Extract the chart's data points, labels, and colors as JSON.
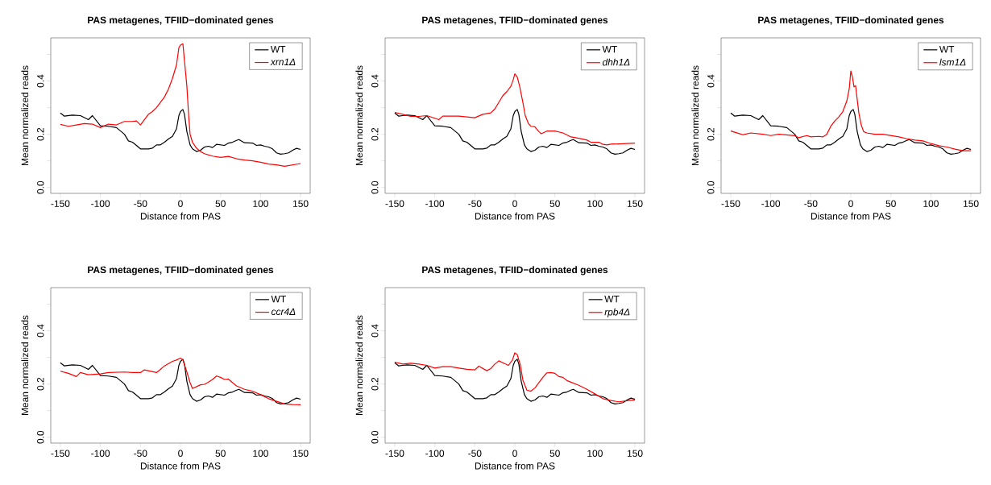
{
  "chart_data": [
    {
      "type": "line",
      "title": "PAS metagenes, TFIID−dominated genes",
      "xlabel": "Distance from PAS",
      "ylabel": "Mean normalized reads",
      "legend": "top right",
      "xlim": [
        -162,
        162
      ],
      "ylim": [
        -0.022,
        0.562
      ],
      "xticks": [
        -150,
        -100,
        -50,
        0,
        50,
        100,
        150
      ],
      "yticks": [
        {
          "value": 0,
          "label": "0.0"
        },
        {
          "value": 0.1,
          "label": null
        },
        {
          "value": 0.2,
          "label": "0.2"
        },
        {
          "value": 0.3,
          "label": null
        },
        {
          "value": 0.4,
          "label": "0.4"
        },
        {
          "value": 0.5,
          "label": null
        }
      ],
      "series": [
        {
          "name": "WT",
          "color": "#000000",
          "x": [
            -150,
            -145,
            -140,
            -135,
            -125,
            -115,
            -110,
            -100,
            -90,
            -80,
            -70,
            -65,
            -60,
            -55,
            -50,
            -40,
            -35,
            -30,
            -25,
            -20,
            -15,
            -10,
            -5,
            -2,
            0,
            3,
            5,
            8,
            12,
            15,
            20,
            25,
            30,
            35,
            40,
            45,
            50,
            55,
            60,
            65,
            70,
            73,
            80,
            90,
            95,
            100,
            105,
            110,
            115,
            120,
            125,
            130,
            135,
            140,
            145,
            150
          ],
          "values": [
            0.28,
            0.268,
            0.27,
            0.272,
            0.27,
            0.255,
            0.27,
            0.232,
            0.23,
            0.225,
            0.2,
            0.175,
            0.17,
            0.158,
            0.145,
            0.145,
            0.148,
            0.16,
            0.16,
            0.17,
            0.182,
            0.192,
            0.22,
            0.27,
            0.285,
            0.293,
            0.275,
            0.21,
            0.16,
            0.145,
            0.135,
            0.14,
            0.152,
            0.155,
            0.15,
            0.162,
            0.16,
            0.158,
            0.167,
            0.17,
            0.177,
            0.18,
            0.168,
            0.167,
            0.158,
            0.16,
            0.155,
            0.152,
            0.145,
            0.13,
            0.125,
            0.127,
            0.13,
            0.14,
            0.147,
            0.143
          ]
        },
        {
          "name": "xrn1Δ",
          "color": "#ff0000",
          "x": [
            -150,
            -140,
            -130,
            -120,
            -110,
            -100,
            -90,
            -80,
            -70,
            -60,
            -55,
            -50,
            -45,
            -40,
            -35,
            -30,
            -20,
            -15,
            -10,
            -5,
            -2,
            0,
            3,
            8,
            10,
            12,
            15,
            20,
            25,
            30,
            40,
            50,
            60,
            70,
            80,
            90,
            100,
            110,
            120,
            130,
            140,
            150
          ],
          "values": [
            0.237,
            0.23,
            0.235,
            0.24,
            0.238,
            0.225,
            0.238,
            0.235,
            0.248,
            0.248,
            0.25,
            0.235,
            0.255,
            0.275,
            0.285,
            0.3,
            0.34,
            0.37,
            0.41,
            0.46,
            0.525,
            0.535,
            0.54,
            0.38,
            0.28,
            0.2,
            0.17,
            0.148,
            0.135,
            0.127,
            0.118,
            0.113,
            0.117,
            0.108,
            0.103,
            0.1,
            0.095,
            0.088,
            0.085,
            0.08,
            0.085,
            0.09
          ]
        }
      ]
    },
    {
      "type": "line",
      "title": "PAS metagenes, TFIID−dominated genes",
      "xlabel": "Distance from PAS",
      "ylabel": "Mean normalized reads",
      "legend": "top right",
      "xlim": [
        -162,
        162
      ],
      "ylim": [
        -0.022,
        0.562
      ],
      "xticks": [
        -150,
        -100,
        -50,
        0,
        50,
        100,
        150
      ],
      "yticks": [
        {
          "value": 0,
          "label": "0.0"
        },
        {
          "value": 0.1,
          "label": null
        },
        {
          "value": 0.2,
          "label": "0.2"
        },
        {
          "value": 0.3,
          "label": null
        },
        {
          "value": 0.4,
          "label": "0.4"
        },
        {
          "value": 0.5,
          "label": null
        }
      ],
      "series": [
        {
          "name": "WT",
          "color": "#000000",
          "x": [
            -150,
            -145,
            -140,
            -135,
            -125,
            -115,
            -110,
            -100,
            -90,
            -80,
            -70,
            -65,
            -60,
            -55,
            -50,
            -40,
            -35,
            -30,
            -25,
            -20,
            -15,
            -10,
            -5,
            -2,
            0,
            3,
            5,
            8,
            12,
            15,
            20,
            25,
            30,
            35,
            40,
            45,
            50,
            55,
            60,
            65,
            70,
            73,
            80,
            90,
            95,
            100,
            105,
            110,
            115,
            120,
            125,
            130,
            135,
            140,
            145,
            150
          ],
          "values": [
            0.28,
            0.268,
            0.27,
            0.272,
            0.27,
            0.255,
            0.27,
            0.232,
            0.23,
            0.225,
            0.2,
            0.175,
            0.17,
            0.158,
            0.145,
            0.145,
            0.148,
            0.16,
            0.16,
            0.17,
            0.182,
            0.192,
            0.22,
            0.27,
            0.285,
            0.293,
            0.275,
            0.21,
            0.16,
            0.145,
            0.135,
            0.14,
            0.152,
            0.155,
            0.15,
            0.162,
            0.16,
            0.158,
            0.167,
            0.17,
            0.177,
            0.18,
            0.168,
            0.167,
            0.158,
            0.16,
            0.155,
            0.152,
            0.145,
            0.13,
            0.125,
            0.127,
            0.13,
            0.14,
            0.147,
            0.143
          ]
        },
        {
          "name": "dhh1Δ",
          "color": "#ff0000",
          "x": [
            -150,
            -140,
            -130,
            -120,
            -110,
            -100,
            -95,
            -90,
            -70,
            -60,
            -50,
            -40,
            -30,
            -25,
            -20,
            -15,
            -10,
            -5,
            -2,
            0,
            3,
            6,
            10,
            13,
            17,
            20,
            25,
            30,
            33,
            40,
            50,
            60,
            70,
            80,
            90,
            95,
            105,
            110,
            115,
            120,
            130,
            150
          ],
          "values": [
            0.282,
            0.275,
            0.267,
            0.267,
            0.27,
            0.26,
            0.255,
            0.268,
            0.268,
            0.265,
            0.262,
            0.275,
            0.28,
            0.295,
            0.32,
            0.345,
            0.36,
            0.38,
            0.405,
            0.427,
            0.415,
            0.38,
            0.32,
            0.27,
            0.24,
            0.23,
            0.228,
            0.21,
            0.202,
            0.212,
            0.212,
            0.205,
            0.19,
            0.185,
            0.178,
            0.17,
            0.17,
            0.162,
            0.16,
            0.163,
            0.164,
            0.167
          ]
        }
      ]
    },
    {
      "type": "line",
      "title": "PAS metagenes, TFIID−dominated genes",
      "xlabel": "Distance from PAS",
      "ylabel": "Mean normalized reads",
      "legend": "top right",
      "xlim": [
        -162,
        162
      ],
      "ylim": [
        -0.022,
        0.562
      ],
      "xticks": [
        -150,
        -100,
        -50,
        0,
        50,
        100,
        150
      ],
      "yticks": [
        {
          "value": 0,
          "label": "0.0"
        },
        {
          "value": 0.1,
          "label": null
        },
        {
          "value": 0.2,
          "label": "0.2"
        },
        {
          "value": 0.3,
          "label": null
        },
        {
          "value": 0.4,
          "label": "0.4"
        },
        {
          "value": 0.5,
          "label": null
        }
      ],
      "series": [
        {
          "name": "WT",
          "color": "#000000",
          "x": [
            -150,
            -145,
            -140,
            -135,
            -125,
            -115,
            -110,
            -100,
            -90,
            -80,
            -70,
            -65,
            -60,
            -55,
            -50,
            -40,
            -35,
            -30,
            -25,
            -20,
            -15,
            -10,
            -5,
            -2,
            0,
            3,
            5,
            8,
            12,
            15,
            20,
            25,
            30,
            35,
            40,
            45,
            50,
            55,
            60,
            65,
            70,
            73,
            80,
            90,
            95,
            100,
            105,
            110,
            115,
            120,
            125,
            130,
            135,
            140,
            145,
            150
          ],
          "values": [
            0.28,
            0.268,
            0.27,
            0.272,
            0.27,
            0.255,
            0.27,
            0.232,
            0.23,
            0.225,
            0.2,
            0.175,
            0.17,
            0.158,
            0.145,
            0.145,
            0.148,
            0.16,
            0.16,
            0.17,
            0.182,
            0.192,
            0.22,
            0.27,
            0.285,
            0.293,
            0.275,
            0.21,
            0.16,
            0.145,
            0.135,
            0.14,
            0.152,
            0.155,
            0.15,
            0.162,
            0.16,
            0.158,
            0.167,
            0.17,
            0.177,
            0.18,
            0.168,
            0.167,
            0.158,
            0.16,
            0.155,
            0.152,
            0.145,
            0.13,
            0.125,
            0.127,
            0.13,
            0.14,
            0.147,
            0.143
          ]
        },
        {
          "name": "lsm1Δ",
          "color": "#ff0000",
          "x": [
            -150,
            -140,
            -135,
            -125,
            -110,
            -100,
            -90,
            -70,
            -65,
            -55,
            -50,
            -40,
            -35,
            -30,
            -25,
            -20,
            -15,
            -10,
            -5,
            -2,
            0,
            2,
            4,
            6,
            8,
            10,
            13,
            16,
            20,
            30,
            40,
            50,
            60,
            70,
            80,
            90,
            100,
            110,
            120,
            130,
            140,
            150
          ],
          "values": [
            0.212,
            0.203,
            0.198,
            0.205,
            0.2,
            0.195,
            0.2,
            0.195,
            0.187,
            0.195,
            0.19,
            0.192,
            0.19,
            0.2,
            0.23,
            0.25,
            0.265,
            0.285,
            0.325,
            0.37,
            0.438,
            0.415,
            0.378,
            0.382,
            0.33,
            0.28,
            0.235,
            0.21,
            0.205,
            0.2,
            0.2,
            0.195,
            0.19,
            0.183,
            0.178,
            0.175,
            0.165,
            0.157,
            0.152,
            0.144,
            0.138,
            0.138
          ]
        }
      ]
    },
    {
      "type": "line",
      "title": "PAS metagenes, TFIID−dominated genes",
      "xlabel": "Distance from PAS",
      "ylabel": "Mean normalized reads",
      "legend": "top right",
      "xlim": [
        -162,
        162
      ],
      "ylim": [
        -0.022,
        0.562
      ],
      "xticks": [
        -150,
        -100,
        -50,
        0,
        50,
        100,
        150
      ],
      "yticks": [
        {
          "value": 0,
          "label": "0.0"
        },
        {
          "value": 0.1,
          "label": null
        },
        {
          "value": 0.2,
          "label": "0.2"
        },
        {
          "value": 0.3,
          "label": null
        },
        {
          "value": 0.4,
          "label": "0.4"
        },
        {
          "value": 0.5,
          "label": null
        }
      ],
      "series": [
        {
          "name": "WT",
          "color": "#000000",
          "x": [
            -150,
            -145,
            -140,
            -135,
            -125,
            -115,
            -110,
            -100,
            -90,
            -80,
            -70,
            -65,
            -60,
            -55,
            -50,
            -40,
            -35,
            -30,
            -25,
            -20,
            -15,
            -10,
            -5,
            -2,
            0,
            3,
            5,
            8,
            12,
            15,
            20,
            25,
            30,
            35,
            40,
            45,
            50,
            55,
            60,
            65,
            70,
            73,
            80,
            90,
            95,
            100,
            105,
            110,
            115,
            120,
            125,
            130,
            135,
            140,
            145,
            150
          ],
          "values": [
            0.28,
            0.268,
            0.27,
            0.272,
            0.27,
            0.255,
            0.27,
            0.232,
            0.23,
            0.225,
            0.2,
            0.175,
            0.17,
            0.158,
            0.145,
            0.145,
            0.148,
            0.16,
            0.16,
            0.17,
            0.182,
            0.192,
            0.22,
            0.27,
            0.285,
            0.293,
            0.275,
            0.21,
            0.16,
            0.145,
            0.135,
            0.14,
            0.152,
            0.155,
            0.15,
            0.162,
            0.16,
            0.158,
            0.167,
            0.17,
            0.177,
            0.18,
            0.168,
            0.167,
            0.158,
            0.16,
            0.155,
            0.152,
            0.145,
            0.13,
            0.125,
            0.127,
            0.13,
            0.14,
            0.147,
            0.143
          ]
        },
        {
          "name": "ccr4Δ",
          "color": "#ff0000",
          "x": [
            -150,
            -140,
            -130,
            -125,
            -115,
            -100,
            -90,
            -70,
            -60,
            -50,
            -45,
            -30,
            -25,
            -20,
            -10,
            -5,
            0,
            3,
            8,
            12,
            15,
            20,
            25,
            30,
            35,
            40,
            45,
            50,
            55,
            60,
            65,
            70,
            80,
            90,
            100,
            110,
            120,
            130,
            140,
            150
          ],
          "values": [
            0.248,
            0.24,
            0.228,
            0.243,
            0.235,
            0.238,
            0.243,
            0.245,
            0.243,
            0.243,
            0.253,
            0.243,
            0.255,
            0.268,
            0.285,
            0.29,
            0.297,
            0.29,
            0.245,
            0.205,
            0.183,
            0.19,
            0.197,
            0.199,
            0.207,
            0.217,
            0.23,
            0.225,
            0.217,
            0.218,
            0.205,
            0.193,
            0.18,
            0.173,
            0.16,
            0.145,
            0.135,
            0.125,
            0.123,
            0.122
          ]
        }
      ]
    },
    {
      "type": "line",
      "title": "PAS metagenes, TFIID−dominated genes",
      "xlabel": "Distance from PAS",
      "ylabel": "Mean normalized reads",
      "legend": "top right",
      "xlim": [
        -162,
        162
      ],
      "ylim": [
        -0.022,
        0.562
      ],
      "xticks": [
        -150,
        -100,
        -50,
        0,
        50,
        100,
        150
      ],
      "yticks": [
        {
          "value": 0,
          "label": "0.0"
        },
        {
          "value": 0.1,
          "label": null
        },
        {
          "value": 0.2,
          "label": "0.2"
        },
        {
          "value": 0.3,
          "label": null
        },
        {
          "value": 0.4,
          "label": "0.4"
        },
        {
          "value": 0.5,
          "label": null
        }
      ],
      "series": [
        {
          "name": "WT",
          "color": "#000000",
          "x": [
            -150,
            -145,
            -140,
            -135,
            -125,
            -115,
            -110,
            -100,
            -90,
            -80,
            -70,
            -65,
            -60,
            -55,
            -50,
            -40,
            -35,
            -30,
            -25,
            -20,
            -15,
            -10,
            -5,
            -2,
            0,
            3,
            5,
            8,
            12,
            15,
            20,
            25,
            30,
            35,
            40,
            45,
            50,
            55,
            60,
            65,
            70,
            73,
            80,
            90,
            95,
            100,
            105,
            110,
            115,
            120,
            125,
            130,
            135,
            140,
            145,
            150
          ],
          "values": [
            0.28,
            0.268,
            0.27,
            0.272,
            0.27,
            0.255,
            0.27,
            0.232,
            0.23,
            0.225,
            0.2,
            0.175,
            0.17,
            0.158,
            0.145,
            0.145,
            0.148,
            0.16,
            0.16,
            0.17,
            0.182,
            0.192,
            0.22,
            0.27,
            0.285,
            0.293,
            0.275,
            0.21,
            0.16,
            0.145,
            0.135,
            0.14,
            0.152,
            0.155,
            0.15,
            0.162,
            0.16,
            0.158,
            0.167,
            0.17,
            0.177,
            0.18,
            0.168,
            0.167,
            0.158,
            0.16,
            0.155,
            0.152,
            0.145,
            0.13,
            0.125,
            0.127,
            0.13,
            0.14,
            0.147,
            0.143
          ]
        },
        {
          "name": "rpb4Δ",
          "color": "#ff0000",
          "x": [
            -150,
            -140,
            -130,
            -120,
            -110,
            -100,
            -90,
            -80,
            -70,
            -60,
            -50,
            -45,
            -35,
            -30,
            -25,
            -20,
            -15,
            -8,
            -3,
            0,
            3,
            7,
            10,
            15,
            20,
            25,
            30,
            35,
            40,
            45,
            50,
            55,
            60,
            65,
            70,
            80,
            90,
            100,
            110,
            120,
            130,
            140,
            150
          ],
          "values": [
            0.282,
            0.275,
            0.278,
            0.275,
            0.27,
            0.26,
            0.265,
            0.265,
            0.26,
            0.255,
            0.253,
            0.267,
            0.25,
            0.258,
            0.275,
            0.287,
            0.28,
            0.27,
            0.29,
            0.317,
            0.31,
            0.27,
            0.215,
            0.177,
            0.173,
            0.185,
            0.205,
            0.225,
            0.242,
            0.243,
            0.24,
            0.228,
            0.225,
            0.213,
            0.207,
            0.195,
            0.18,
            0.163,
            0.145,
            0.138,
            0.133,
            0.137,
            0.14
          ]
        }
      ]
    }
  ]
}
